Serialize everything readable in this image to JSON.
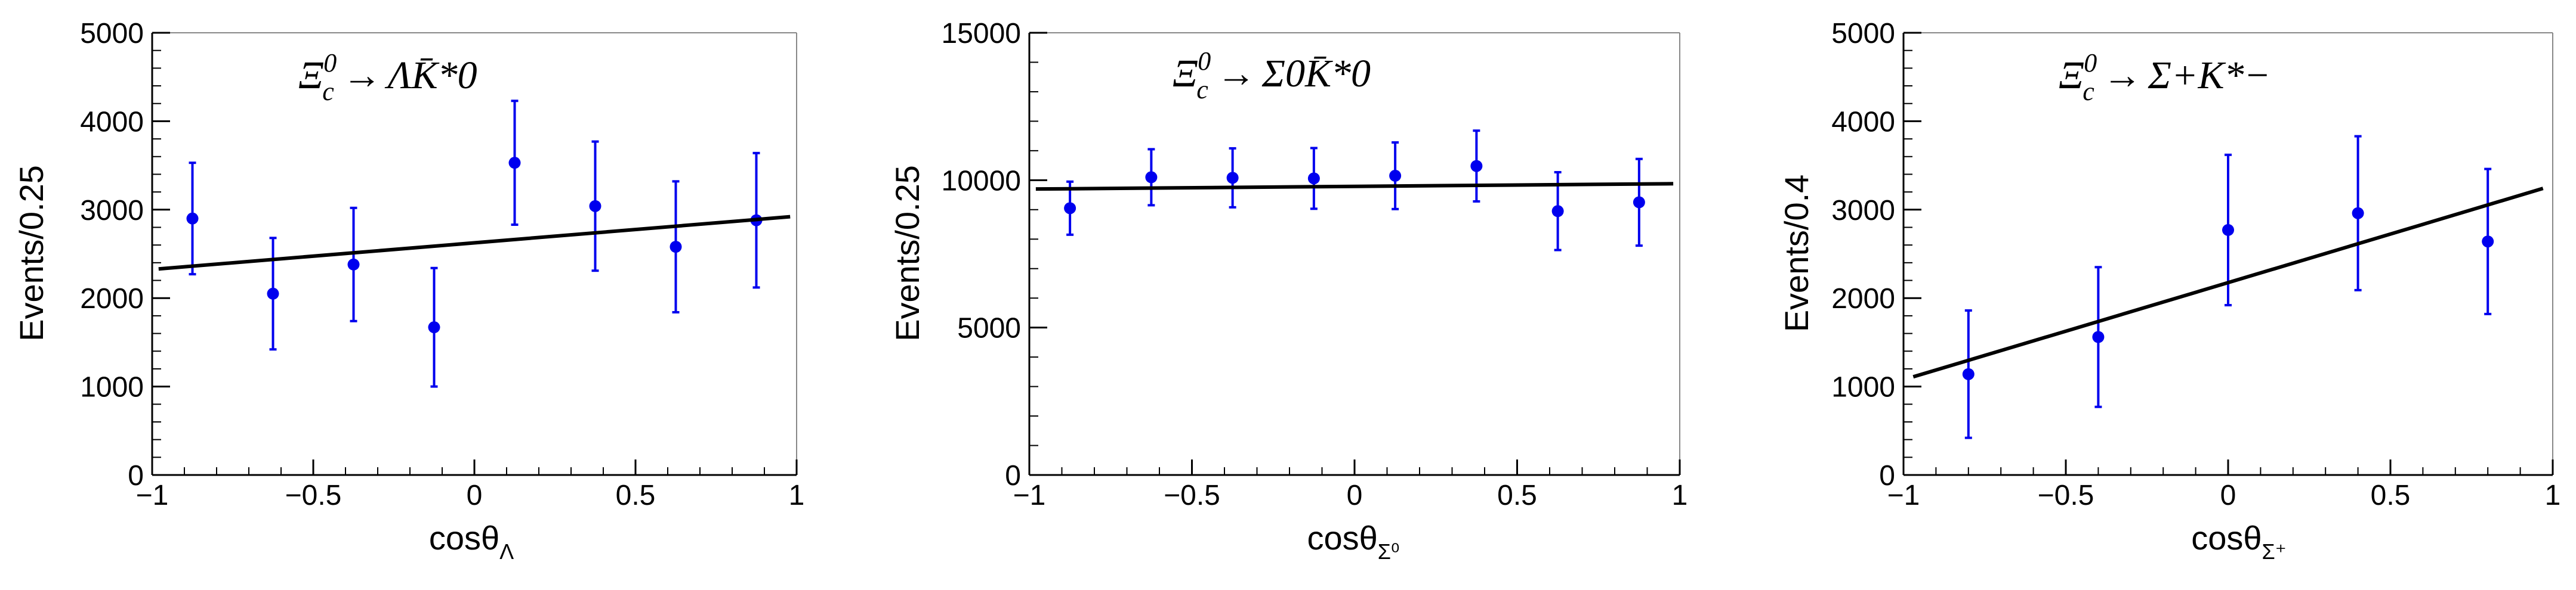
{
  "figure": {
    "colors": {
      "points": "#0000ee",
      "fit": "#000000",
      "axes": "#000000",
      "frame": "#888888"
    }
  },
  "chart_data": [
    {
      "type": "scatter",
      "title": "",
      "annotation": {
        "main": "Ξ",
        "sup": "0",
        "sub": "c",
        "arrow": "→",
        "products": "ΛK̄*0"
      },
      "xlabel": {
        "main": "cosθ",
        "sub": "Λ"
      },
      "ylabel": "Events/0.25",
      "xlim": [
        -1,
        1
      ],
      "ylim": [
        0,
        5000
      ],
      "xticks": [
        -1,
        -0.5,
        0,
        0.5,
        1
      ],
      "yticks": [
        0,
        1000,
        2000,
        3000,
        4000,
        5000
      ],
      "xtick_labels": [
        "−1",
        "−0.5",
        "0",
        "0.5",
        "1"
      ],
      "ytick_labels": [
        "0",
        "1000",
        "2000",
        "3000",
        "4000",
        "5000"
      ],
      "grid": false,
      "series": [
        {
          "kind": "points_with_errors",
          "x": [
            -0.875,
            -0.625,
            -0.375,
            -0.125,
            0.125,
            0.375,
            0.625,
            0.875
          ],
          "y": [
            2900,
            2050,
            2380,
            1670,
            3530,
            3040,
            2580,
            2880
          ],
          "err": [
            630,
            630,
            640,
            670,
            700,
            730,
            740,
            760
          ]
        },
        {
          "kind": "line",
          "x": [
            -0.98,
            0.98
          ],
          "y": [
            2330,
            2920
          ]
        }
      ]
    },
    {
      "type": "scatter",
      "title": "",
      "annotation": {
        "main": "Ξ",
        "sup": "0",
        "sub": "c",
        "arrow": "→",
        "products": "Σ0K̄*0"
      },
      "xlabel": {
        "main": "cosθ",
        "sub": "Σ⁰"
      },
      "ylabel": "Events/0.25",
      "xlim": [
        -1,
        1
      ],
      "ylim": [
        0,
        15000
      ],
      "xticks": [
        -1,
        -0.5,
        0,
        0.5,
        1
      ],
      "yticks": [
        0,
        5000,
        10000,
        15000
      ],
      "xtick_labels": [
        "−1",
        "−0.5",
        "0",
        "0.5",
        "1"
      ],
      "ytick_labels": [
        "0",
        "5000",
        "10000",
        "15000"
      ],
      "grid": false,
      "series": [
        {
          "kind": "points_with_errors",
          "x": [
            -0.875,
            -0.625,
            -0.375,
            -0.125,
            0.125,
            0.375,
            0.625,
            0.875
          ],
          "y": [
            9050,
            10100,
            10080,
            10060,
            10150,
            10480,
            8950,
            9250
          ],
          "err": [
            900,
            950,
            1000,
            1030,
            1130,
            1200,
            1320,
            1470
          ]
        },
        {
          "kind": "line",
          "x": [
            -0.98,
            0.98
          ],
          "y": [
            9700,
            9880
          ]
        }
      ]
    },
    {
      "type": "scatter",
      "title": "",
      "annotation": {
        "main": "Ξ",
        "sup": "0",
        "sub": "c",
        "arrow": "→",
        "products": "Σ+K*−"
      },
      "xlabel": {
        "main": "cosθ",
        "sub": "Σ⁺"
      },
      "ylabel": "Events/0.4",
      "xlim": [
        -1,
        1
      ],
      "ylim": [
        0,
        5000
      ],
      "xticks": [
        -1,
        -0.5,
        0,
        0.5,
        1
      ],
      "yticks": [
        0,
        1000,
        2000,
        3000,
        4000,
        5000
      ],
      "xtick_labels": [
        "−1",
        "−0.5",
        "0",
        "0.5",
        "1"
      ],
      "ytick_labels": [
        "0",
        "1000",
        "2000",
        "3000",
        "4000",
        "5000"
      ],
      "grid": false,
      "series": [
        {
          "kind": "points_with_errors",
          "x": [
            -0.8,
            -0.4,
            0,
            0.4,
            0.8
          ],
          "y": [
            1140,
            1560,
            2770,
            2960,
            2640
          ],
          "err": [
            720,
            790,
            850,
            870,
            820
          ]
        },
        {
          "kind": "line",
          "x": [
            -0.97,
            0.97
          ],
          "y": [
            1110,
            3240
          ]
        }
      ]
    }
  ]
}
